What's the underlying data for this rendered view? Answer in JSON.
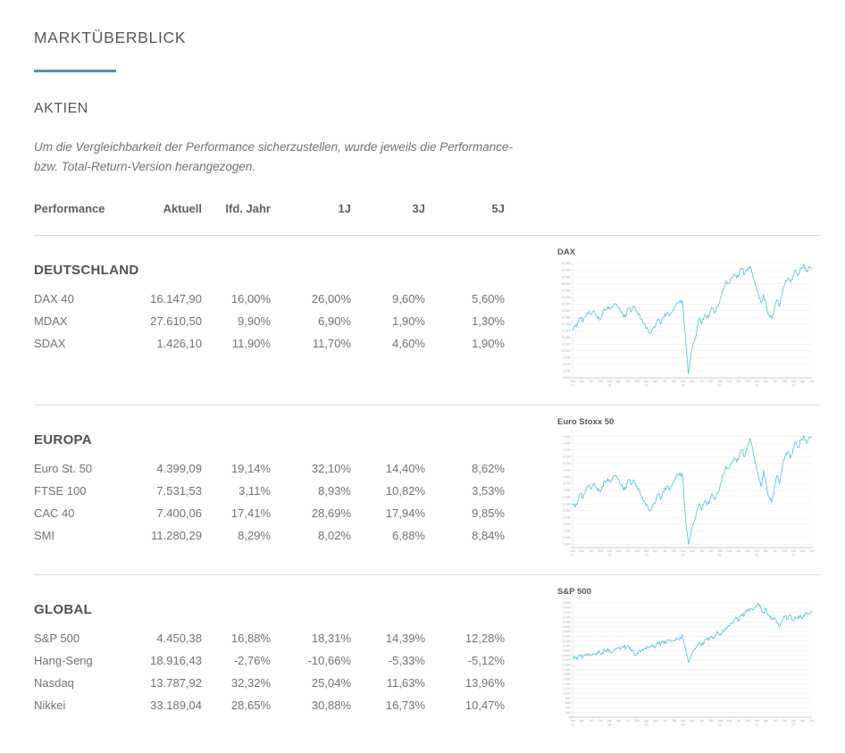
{
  "page": {
    "title": "MARKTÜBERBLICK",
    "section_title": "AKTIEN",
    "note": [
      "Um die Vergleichbarkeit der Performance sicherzustellen, wurde jeweils die Performance-",
      "bzw. Total-Return-Version herangezogen."
    ],
    "accent_color": "#4a90c4"
  },
  "table_header": {
    "cols": [
      "Performance",
      "Aktuell",
      "Ifd. Jahr",
      "1J",
      "3J",
      "5J"
    ]
  },
  "sections": [
    {
      "title": "DEUTSCHLAND",
      "rows": [
        [
          "DAX 40",
          "16.147,90",
          "16,00%",
          "26,00%",
          "9,60%",
          "5,60%"
        ],
        [
          "MDAX",
          "27.610,50",
          "9,90%",
          "6,90%",
          "1,90%",
          "1,30%"
        ],
        [
          "SDAX",
          "1.426,10",
          "11,90%",
          "11,70%",
          "4,60%",
          "1,90%"
        ]
      ]
    },
    {
      "title": "EUROPA",
      "rows": [
        [
          "Euro St. 50",
          "4.399,09",
          "19,14%",
          "32,10%",
          "14,40%",
          "8,62%"
        ],
        [
          "FTSE 100",
          "7.531,53",
          "3,11%",
          "8,93%",
          "10,82%",
          "3,53%"
        ],
        [
          "CAC 40",
          "7.400,06",
          "17,41%",
          "28,69%",
          "17,94%",
          "9,85%"
        ],
        [
          "SMI",
          "11.280,29",
          "8,29%",
          "8,02%",
          "6,88%",
          "8,84%"
        ]
      ]
    },
    {
      "title": "GLOBAL",
      "rows": [
        [
          "S&P 500",
          "4.450,38",
          "16,88%",
          "18,31%",
          "14,39%",
          "12,28%"
        ],
        [
          "Hang-Seng",
          "18.916,43",
          "-2,76%",
          "-10,66%",
          "-5,33%",
          "-5,12%"
        ],
        [
          "Nasdaq",
          "13.787,92",
          "32,32%",
          "25,04%",
          "11,63%",
          "13,96%"
        ],
        [
          "Nikkei",
          "33.189,04",
          "28,65%",
          "30,88%",
          "16,73%",
          "10,47%"
        ]
      ]
    }
  ],
  "chart_data": [
    {
      "type": "line",
      "title": "DAX",
      "line_color": "#4dc0e4",
      "grid": true,
      "ymin": 8000,
      "ymax": 16500,
      "yticks": [
        16500,
        16000,
        15500,
        15000,
        14500,
        14000,
        13500,
        13000,
        12500,
        12000,
        11500,
        11000,
        10500,
        10000,
        9500,
        9000,
        8500,
        8000
      ],
      "xticks": [
        "Jan 17",
        "Apr",
        "Jul",
        "Okt",
        "Jan 18",
        "Apr",
        "Jul",
        "Okt",
        "Jan 19",
        "Apr",
        "Jul",
        "Okt",
        "Jan 20",
        "Apr",
        "Jul",
        "Okt",
        "Jan 21",
        "Apr",
        "Jul",
        "Okt",
        "Jan 22",
        "Apr",
        "Jul",
        "Okt",
        "Jan 23",
        "Apr",
        "Jul"
      ],
      "values": [
        11500,
        11800,
        12100,
        12400,
        12200,
        12600,
        12900,
        12700,
        13000,
        12600,
        12300,
        12800,
        13100,
        13300,
        13100,
        13400,
        13500,
        13200,
        12900,
        12500,
        12700,
        13200,
        13000,
        13300,
        12900,
        12600,
        12300,
        11900,
        11600,
        11300,
        11700,
        12000,
        12300,
        12100,
        12500,
        12800,
        12600,
        12900,
        13300,
        13600,
        13800,
        13500,
        11000,
        8300,
        9800,
        10600,
        11200,
        12400,
        12000,
        12600,
        12400,
        12800,
        13200,
        12900,
        13300,
        14000,
        14600,
        15200,
        15000,
        15400,
        15700,
        15400,
        15800,
        16100,
        15700,
        16000,
        16300,
        15600,
        14900,
        14300,
        13600,
        14200,
        13400,
        12700,
        12400,
        13100,
        13800,
        13300,
        14400,
        15000,
        15400,
        15100,
        15600,
        16000,
        15700,
        16200,
        16450,
        15900,
        16300,
        16147
      ]
    },
    {
      "type": "line",
      "title": "Euro Stoxx 50",
      "line_color": "#4dc0e4",
      "grid": true,
      "ymin": 2750,
      "ymax": 4450,
      "yticks": [
        4400,
        4300,
        4200,
        4100,
        4000,
        3900,
        3800,
        3700,
        3600,
        3500,
        3400,
        3300,
        3200,
        3100,
        3000,
        2900,
        2800
      ],
      "xticks": [
        "Jan 17",
        "Apr",
        "Jul",
        "Okt",
        "Jan 18",
        "Apr",
        "Jul",
        "Okt",
        "Jan 19",
        "Apr",
        "Jul",
        "Okt",
        "Jan 20",
        "Apr",
        "Jul",
        "Okt",
        "Jan 21",
        "Apr",
        "Jul",
        "Okt",
        "Jan 22",
        "Apr",
        "Jul",
        "Okt",
        "Jan 23",
        "Apr",
        "Jul"
      ],
      "values": [
        3400,
        3350,
        3450,
        3550,
        3480,
        3600,
        3680,
        3620,
        3700,
        3640,
        3580,
        3660,
        3740,
        3780,
        3720,
        3800,
        3820,
        3760,
        3680,
        3600,
        3660,
        3760,
        3700,
        3740,
        3660,
        3580,
        3500,
        3420,
        3360,
        3300,
        3380,
        3460,
        3540,
        3480,
        3580,
        3660,
        3600,
        3680,
        3760,
        3840,
        3860,
        3800,
        3200,
        2800,
        3000,
        3100,
        3250,
        3400,
        3300,
        3440,
        3380,
        3460,
        3540,
        3480,
        3560,
        3700,
        3840,
        3960,
        3920,
        4000,
        4080,
        4020,
        4120,
        4200,
        4100,
        4220,
        4380,
        4200,
        4000,
        3840,
        3660,
        3900,
        3700,
        3500,
        3420,
        3620,
        3820,
        3700,
        3950,
        4100,
        4180,
        4080,
        4220,
        4320,
        4240,
        4360,
        4420,
        4300,
        4400,
        4399
      ]
    },
    {
      "type": "line",
      "title": "S&P 500",
      "line_color": "#4dc0e4",
      "grid": true,
      "ymin": 0,
      "ymax": 4800,
      "yticks": [
        4800,
        4600,
        4400,
        4200,
        4000,
        3800,
        3600,
        3400,
        3200,
        3000,
        2800,
        2600,
        2400,
        2200,
        2000,
        1800,
        1600,
        1400,
        1200,
        1000,
        800,
        600,
        400,
        200,
        0
      ],
      "xticks": [
        "Jan 17",
        "Apr",
        "Jul",
        "Okt",
        "Jan 18",
        "Apr",
        "Jul",
        "Okt",
        "Jan 19",
        "Apr",
        "Jul",
        "Okt",
        "Jan 20",
        "Apr",
        "Jul",
        "Okt",
        "Jan 21",
        "Apr",
        "Jul",
        "Okt",
        "Jan 22",
        "Apr",
        "Jul",
        "Okt",
        "Jan 23",
        "Apr",
        "Jul"
      ],
      "values": [
        2450,
        2480,
        2520,
        2550,
        2530,
        2580,
        2620,
        2600,
        2650,
        2700,
        2750,
        2720,
        2800,
        2880,
        2720,
        2780,
        2850,
        2900,
        2870,
        2920,
        2950,
        2900,
        2850,
        2620,
        2700,
        2800,
        2860,
        2920,
        2960,
        3000,
        2950,
        3020,
        3080,
        3120,
        3100,
        3160,
        3220,
        3180,
        3250,
        3300,
        3360,
        3400,
        2900,
        2300,
        2600,
        2800,
        2950,
        3100,
        3000,
        3150,
        3250,
        3350,
        3300,
        3450,
        3550,
        3500,
        3650,
        3750,
        3850,
        3950,
        4050,
        4150,
        4100,
        4250,
        4350,
        4450,
        4550,
        4500,
        4650,
        4800,
        4600,
        4400,
        4550,
        4300,
        4100,
        4200,
        3950,
        3800,
        4050,
        4250,
        4100,
        4300,
        4050,
        4150,
        4250,
        4200,
        4300,
        4400,
        4350,
        4450
      ]
    }
  ]
}
